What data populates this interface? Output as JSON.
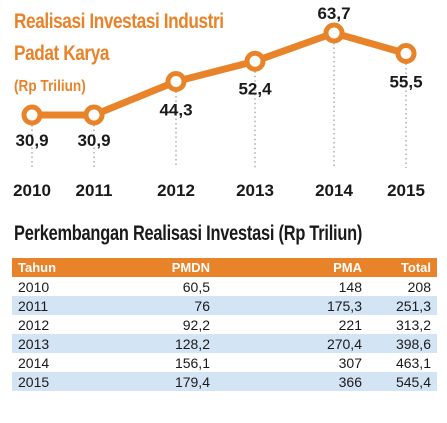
{
  "title_line1": "Realisasi Investasi Industri",
  "title_line2": "Padat Karya",
  "subtitle": "(Rp Triliun)",
  "accent_color": "#e8832a",
  "row_highlight_color": "#d3e4f5",
  "chart_data": {
    "type": "line",
    "title": "Realisasi Investasi Industri Padat Karya",
    "subtitle": "(Rp Triliun)",
    "categories": [
      "2010",
      "2011",
      "2012",
      "2013",
      "2014",
      "2015"
    ],
    "values": [
      30.9,
      30.9,
      44.3,
      52.4,
      63.7,
      55.5
    ],
    "value_labels": [
      "30,9",
      "30,9",
      "44,3",
      "52,4",
      "63,7",
      "55,5"
    ],
    "xlabel": "",
    "ylabel": "",
    "grid": false
  },
  "table": {
    "title": "Perkembangan Realisasi Investasi (Rp Triliun)",
    "headers": [
      "Tahun",
      "PMDN",
      "PMA",
      "Total"
    ],
    "rows": [
      [
        "2010",
        "60,5",
        "148",
        "208"
      ],
      [
        "2011",
        "76",
        "175,3",
        "251,3"
      ],
      [
        "2012",
        "92,2",
        "221",
        "313,2"
      ],
      [
        "2013",
        "128,2",
        "270,4",
        "398,6"
      ],
      [
        "2014",
        "156,1",
        "307",
        "463,1"
      ],
      [
        "2015",
        "179,4",
        "366",
        "545,4"
      ]
    ]
  }
}
